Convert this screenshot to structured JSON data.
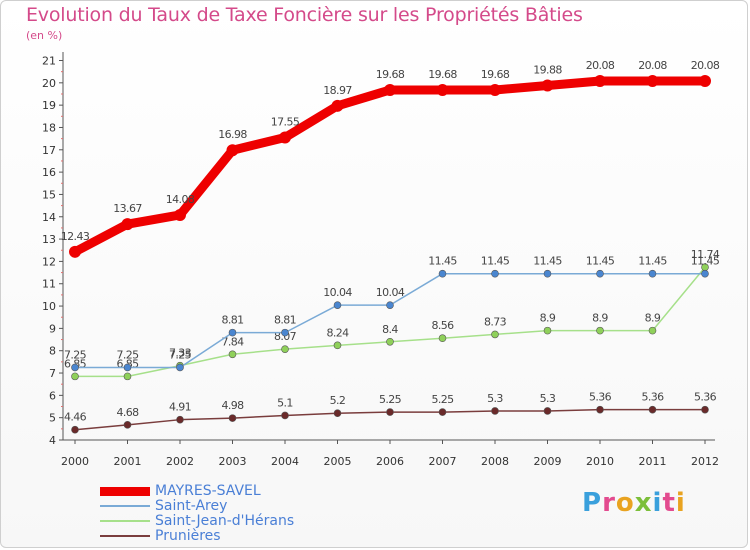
{
  "title": "Evolution du Taux de Taxe Foncière sur les Propriétés Bâties",
  "subtitle": "(en %)",
  "logo": {
    "letters": [
      "P",
      "r",
      "o",
      "x",
      "i",
      "t",
      "i"
    ],
    "colors": [
      "#3aa0dc",
      "#e34b8f",
      "#e9a320",
      "#7cbf3a",
      "#3aa0dc",
      "#e34b8f",
      "#e9a320"
    ]
  },
  "chart_data": {
    "type": "line",
    "x": [
      "2000",
      "2001",
      "2002",
      "2003",
      "2004",
      "2005",
      "2006",
      "2007",
      "2008",
      "2009",
      "2010",
      "2011",
      "2012"
    ],
    "ylim": [
      4,
      21
    ],
    "yticks": [
      "4",
      "5",
      "6",
      "7",
      "8",
      "9",
      "10",
      "11",
      "12",
      "13",
      "14",
      "15",
      "16",
      "17",
      "18",
      "19",
      "20",
      "21"
    ],
    "grid": false,
    "legend_position": "bottom-left",
    "series": [
      {
        "name": "MAYRES-SAVEL",
        "color": "#ee0000",
        "values": [
          12.43,
          13.67,
          14.08,
          16.98,
          17.55,
          18.97,
          19.68,
          19.68,
          19.68,
          19.88,
          20.08,
          20.08,
          20.08
        ],
        "labels": [
          "12.43",
          "13.67",
          "14.08",
          "16.98",
          "17.55",
          "18.97",
          "19.68",
          "19.68",
          "19.68",
          "19.88",
          "20.08",
          "20.08",
          "20.08"
        ]
      },
      {
        "name": "Saint-Arey",
        "color": "#7aaad6",
        "values": [
          7.25,
          7.25,
          7.25,
          8.81,
          8.81,
          10.04,
          10.04,
          11.45,
          11.45,
          11.45,
          11.45,
          11.45,
          11.45
        ],
        "labels": [
          "7.25",
          "7.25",
          "7.25",
          "8.81",
          "8.81",
          "10.04",
          "10.04",
          "11.45",
          "11.45",
          "11.45",
          "11.45",
          "11.45",
          "11.45"
        ]
      },
      {
        "name": "Saint-Jean-d'Hérans",
        "color": "#a6e08a",
        "values": [
          6.85,
          6.85,
          7.33,
          7.84,
          8.07,
          8.24,
          8.4,
          8.56,
          8.73,
          8.9,
          8.9,
          8.9,
          11.74
        ],
        "labels": [
          "6.85",
          "6.85",
          "7.33",
          "7.84",
          "8.07",
          "8.24",
          "8.4",
          "8.56",
          "8.73",
          "8.9",
          "8.9",
          "8.9",
          "11.74"
        ]
      },
      {
        "name": "Prunières",
        "color": "#7a3d3d",
        "values": [
          4.46,
          4.68,
          4.91,
          4.98,
          5.1,
          5.2,
          5.25,
          5.25,
          5.3,
          5.3,
          5.36,
          5.36,
          5.36
        ],
        "labels": [
          "4.46",
          "4.68",
          "4.91",
          "4.98",
          "5.1",
          "5.2",
          "5.25",
          "5.25",
          "5.3",
          "5.3",
          "5.36",
          "5.36",
          "5.36"
        ]
      }
    ]
  }
}
